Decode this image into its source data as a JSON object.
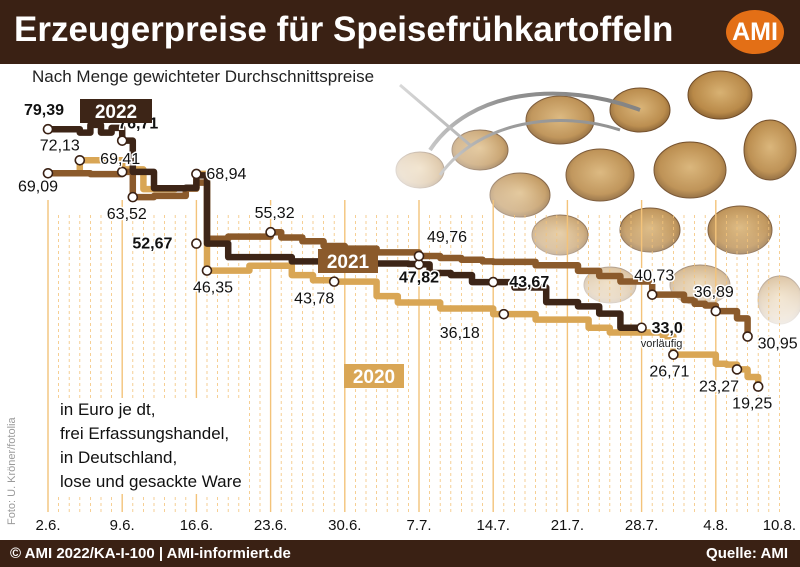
{
  "header": {
    "title": "Erzeugerpreise für Speisefrühkartoffeln",
    "logo": "AMI"
  },
  "subtitle": "Nach Menge gewichteter Durchschnittspreise",
  "note": [
    "in Euro je dt,",
    "frei Erfassungshandel,",
    "in Deutschland,",
    "lose und gesackte Ware"
  ],
  "photo_credit": "Foto: U. Kröner/fotolia",
  "footer": {
    "left": "© AMI 2022/KA-I-100 | AMI-informiert.de",
    "right": "Quelle: AMI"
  },
  "colors": {
    "header_bg": "#3a2114",
    "logo_bg": "#e36f16",
    "grid": "#f3c37a",
    "series_2022": "#3d2517",
    "series_2021": "#8b5a2b",
    "series_2020": "#d9a655"
  },
  "chart_data": {
    "type": "line",
    "step": true,
    "unit": "Euro je dt",
    "x_ticks": [
      "2.6.",
      "9.6.",
      "16.6.",
      "23.6.",
      "30.6.",
      "7.7.",
      "14.7.",
      "21.7.",
      "28.7.",
      "4.8.",
      "10.8."
    ],
    "grid": "vertical, daily",
    "series": [
      {
        "name": "2022",
        "x": [
          "2.6.",
          "3.6.",
          "5.6.",
          "6.6.",
          "7.6.",
          "8.6.",
          "9.6.",
          "10.6.",
          "11.6.",
          "12.6.",
          "14.6.",
          "15.6.",
          "16.6.",
          "17.6.",
          "18.6.",
          "19.6.",
          "21.6.",
          "23.6.",
          "25.6.",
          "26.6.",
          "28.6.",
          "30.6.",
          "2.7.",
          "4.7.",
          "6.7.",
          "7.7.",
          "8.7.",
          "10.7.",
          "12.7.",
          "14.7.",
          "16.7.",
          "18.7.",
          "19.7.",
          "20.7.",
          "22.7.",
          "24.7.",
          "25.7.",
          "26.7.",
          "28.7."
        ],
        "values": [
          79.39,
          79.39,
          78.6,
          80.4,
          78.6,
          79.7,
          76.71,
          69.41,
          69.41,
          65.6,
          65.6,
          65.7,
          68.6,
          52.67,
          52.67,
          49.5,
          49.5,
          49.5,
          48.5,
          48.5,
          48.2,
          48.1,
          48.0,
          48.0,
          47.9,
          47.82,
          45.8,
          45.3,
          43.67,
          43.67,
          42.4,
          42.4,
          39.0,
          39.0,
          38.0,
          36.3,
          36.3,
          33.0,
          33.0
        ],
        "labels": [
          {
            "x": "2.6.",
            "value": 79.39,
            "text": "79,39",
            "bold": true
          },
          {
            "x": "9.6.",
            "value": 76.71,
            "text": "76,71",
            "bold": true
          },
          {
            "x": "16.6.",
            "value": 52.67,
            "text": "52,67",
            "bold": true
          },
          {
            "x": "7.7.",
            "value": 47.82,
            "text": "47,82",
            "bold": true
          },
          {
            "x": "14.7.",
            "value": 43.67,
            "text": "43,67",
            "bold": true
          },
          {
            "x": "28.7.",
            "value": 33.0,
            "text": "33,0",
            "bold": true,
            "note": "vorläufig"
          }
        ]
      },
      {
        "name": "2021",
        "x": [
          "2.6.",
          "4.6.",
          "6.6.",
          "8.6.",
          "9.6.",
          "10.6.",
          "11.6.",
          "12.6.",
          "13.6.",
          "14.6.",
          "15.6.",
          "16.6.",
          "17.6.",
          "18.6.",
          "19.6.",
          "21.6.",
          "23.6.",
          "24.6.",
          "26.6.",
          "28.6.",
          "30.6.",
          "1.7.",
          "3.7.",
          "5.7.",
          "7.7.",
          "8.7.",
          "9.7.",
          "11.7.",
          "13.7.",
          "14.7.",
          "16.7.",
          "18.7.",
          "20.7.",
          "22.7.",
          "24.7.",
          "26.7.",
          "27.7.",
          "29.7.",
          "31.7.",
          "1.8.",
          "2.8.",
          "3.8.",
          "4.8.",
          "5.8.",
          "6.8.",
          "7.8."
        ],
        "values": [
          69.09,
          69.09,
          68.9,
          68.9,
          69.41,
          63.52,
          63.52,
          63.8,
          63.8,
          63.8,
          65.5,
          66.9,
          53.8,
          53.8,
          54.3,
          54.3,
          55.32,
          54.1,
          53.2,
          52.1,
          51.5,
          51.5,
          50.6,
          50.6,
          49.76,
          49.76,
          49.3,
          48.9,
          48.5,
          48.4,
          48.4,
          47.6,
          47.6,
          46.3,
          45.1,
          43.8,
          43.8,
          40.73,
          40.73,
          39.5,
          38.6,
          38.2,
          36.89,
          36.89,
          35.2,
          30.95
        ],
        "labels": [
          {
            "x": "2.6.",
            "value": 69.09,
            "text": "69,09"
          },
          {
            "x": "9.6.",
            "value": 69.41,
            "text": "69,41"
          },
          {
            "x": "10.6.",
            "value": 63.52,
            "text": "63,52"
          },
          {
            "x": "23.6.",
            "value": 55.32,
            "text": "55,32"
          },
          {
            "x": "7.7.",
            "value": 49.76,
            "text": "49,76"
          },
          {
            "x": "29.7.",
            "value": 40.73,
            "text": "40,73"
          },
          {
            "x": "4.8.",
            "value": 36.89,
            "text": "36,89"
          },
          {
            "x": "7.8.",
            "value": 30.95,
            "text": "30,95"
          }
        ]
      },
      {
        "name": "2020",
        "x": [
          "2.6.",
          "4.6.",
          "5.6.",
          "8.6.",
          "9.6.",
          "10.6.",
          "11.6.",
          "13.6.",
          "14.6.",
          "15.6.",
          "16.6.",
          "17.6.",
          "18.6.",
          "19.6.",
          "21.6.",
          "23.6.",
          "25.6.",
          "26.6.",
          "27.6.",
          "29.6.",
          "1.7.",
          "2.7.",
          "3.7.",
          "4.7.",
          "5.7.",
          "7.7.",
          "9.7.",
          "10.7.",
          "12.7.",
          "14.7.",
          "15.7.",
          "16.7.",
          "18.7.",
          "19.7.",
          "20.7.",
          "22.7.",
          "23.7.",
          "25.7.",
          "26.7.",
          "28.7.",
          "30.7.",
          "31.7.",
          "2.8.",
          "4.8.",
          "5.8.",
          "6.8.",
          "7.8.",
          "8.8."
        ],
        "values": [
          69.09,
          69.09,
          72.13,
          72.13,
          70.0,
          70.0,
          65.4,
          65.4,
          65.6,
          65.6,
          68.94,
          46.35,
          46.35,
          46.35,
          47.5,
          47.5,
          45.3,
          45.3,
          44.1,
          43.78,
          43.78,
          43.78,
          40.4,
          40.4,
          38.9,
          38.9,
          37.5,
          37.5,
          37.5,
          36.18,
          36.18,
          36.18,
          34.9,
          34.9,
          34.9,
          34.9,
          33.0,
          31.9,
          31.9,
          31.9,
          31.0,
          26.71,
          26.71,
          24.6,
          24.4,
          23.27,
          21.5,
          19.25
        ],
        "labels": [
          {
            "x": "5.6.",
            "value": 72.13,
            "text": "72,13"
          },
          {
            "x": "16.6.",
            "value": 68.94,
            "text": "68,94"
          },
          {
            "x": "17.6.",
            "value": 46.35,
            "text": "46,35"
          },
          {
            "x": "29.6.",
            "value": 43.78,
            "text": "43,78"
          },
          {
            "x": "15.7.",
            "value": 36.18,
            "text": "36,18"
          },
          {
            "x": "31.7.",
            "value": 26.71,
            "text": "26,71"
          },
          {
            "x": "6.8.",
            "value": 23.27,
            "text": "23,27"
          },
          {
            "x": "8.8.",
            "value": 19.25,
            "text": "19,25"
          }
        ]
      }
    ]
  }
}
